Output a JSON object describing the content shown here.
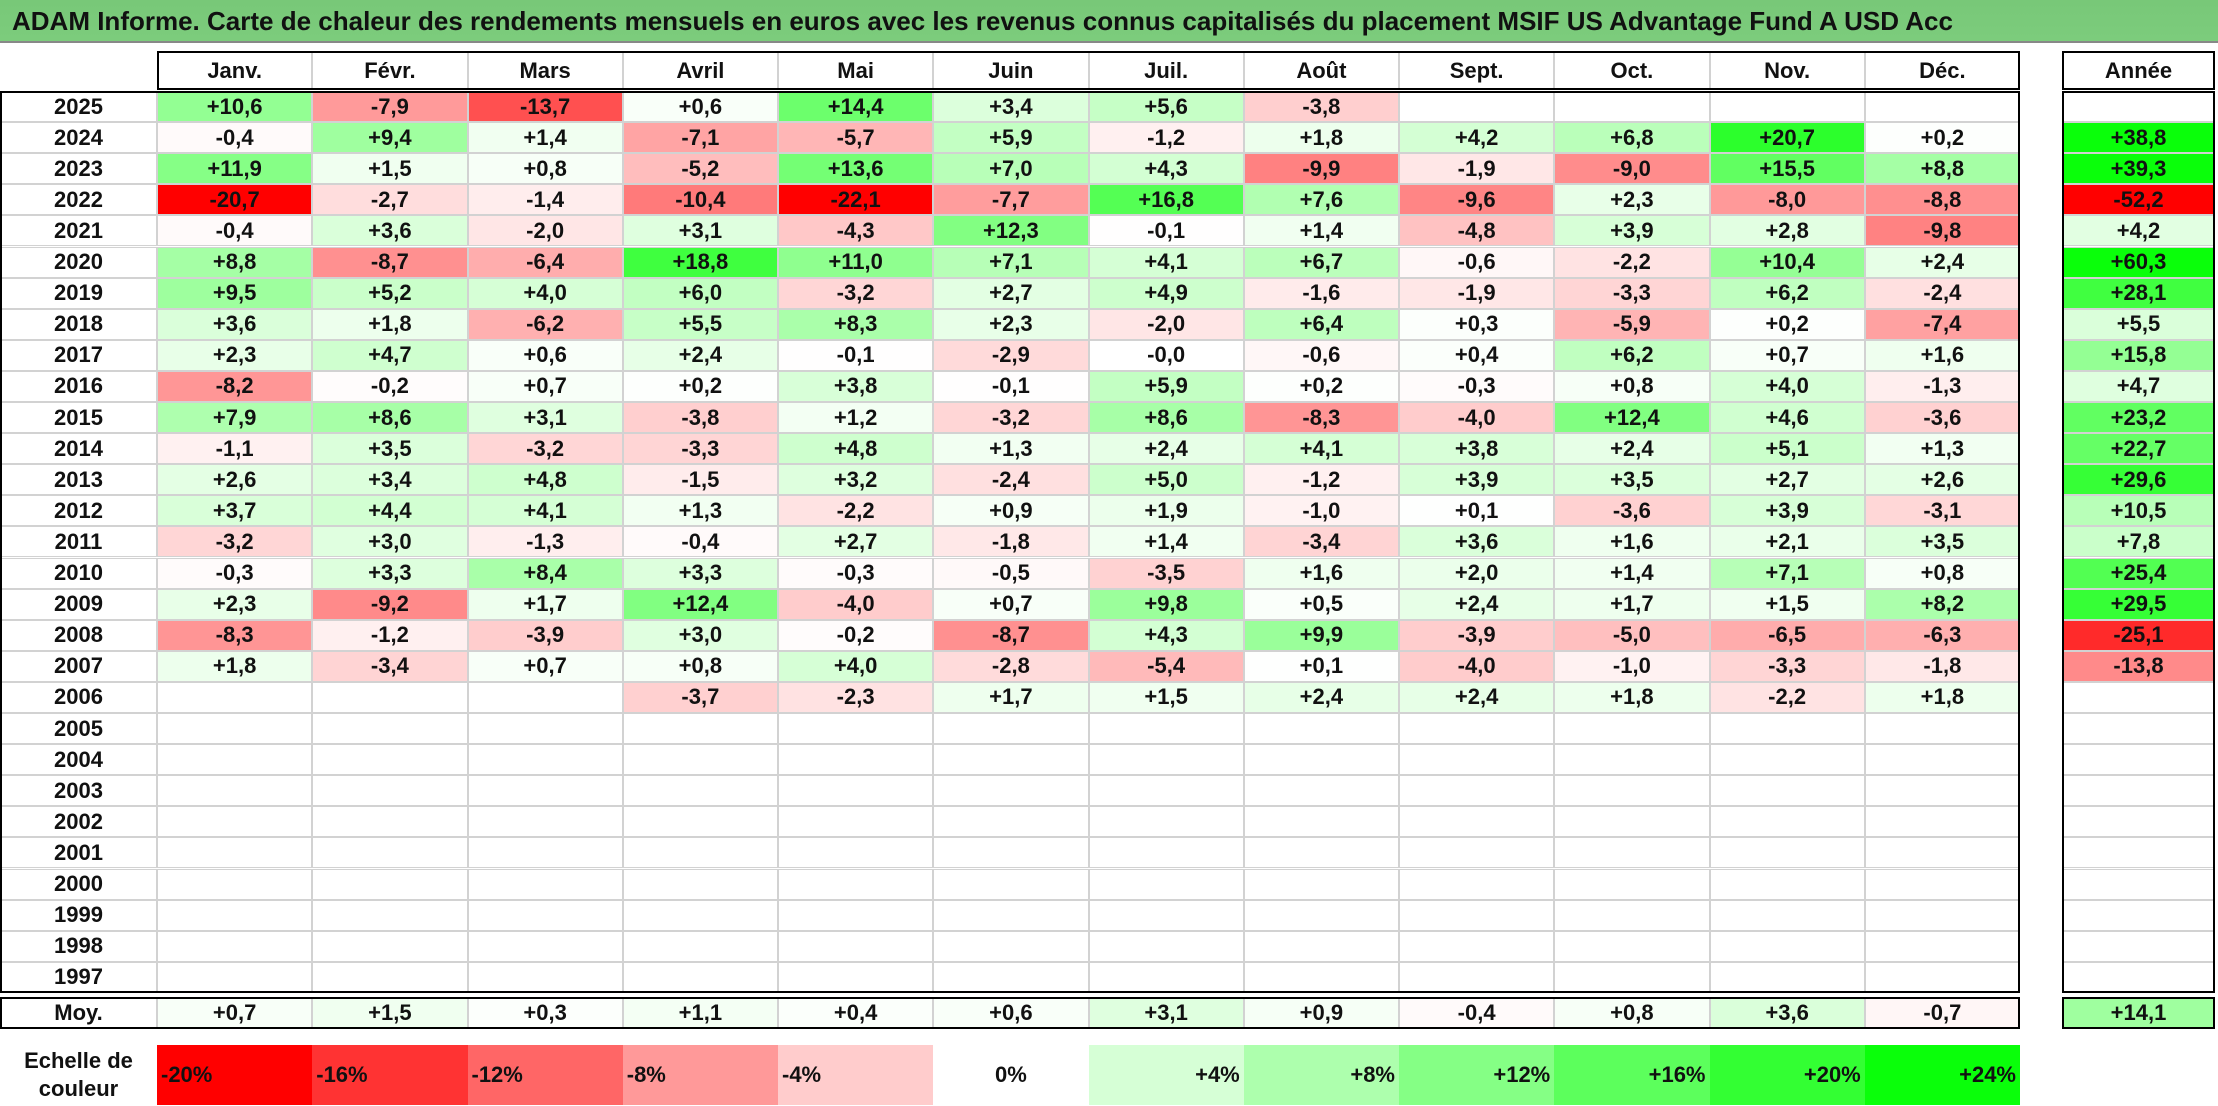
{
  "title": "ADAM Informe. Carte de chaleur des rendements mensuels en euros avec les revenus connus capitalisés du placement MSIF US Advantage Fund A USD Acc",
  "chart_data": {
    "type": "heatmap",
    "title": "ADAM Informe. Carte de chaleur des rendements mensuels en euros avec les revenus connus capitalisés du placement MSIF US Advantage Fund A USD Acc",
    "columns": [
      "Janv.",
      "Févr.",
      "Mars",
      "Avril",
      "Mai",
      "Juin",
      "Juil.",
      "Août",
      "Sept.",
      "Oct.",
      "Nov.",
      "Déc."
    ],
    "annual_header": "Année",
    "rows": [
      {
        "year": "2025",
        "values": [
          "+10,6",
          "-7,9",
          "-13,7",
          "+0,6",
          "+14,4",
          "+3,4",
          "+5,6",
          "-3,8",
          "",
          "",
          "",
          ""
        ],
        "annual": ""
      },
      {
        "year": "2024",
        "values": [
          "-0,4",
          "+9,4",
          "+1,4",
          "-7,1",
          "-5,7",
          "+5,9",
          "-1,2",
          "+1,8",
          "+4,2",
          "+6,8",
          "+20,7",
          "+0,2"
        ],
        "annual": "+38,8"
      },
      {
        "year": "2023",
        "values": [
          "+11,9",
          "+1,5",
          "+0,8",
          "-5,2",
          "+13,6",
          "+7,0",
          "+4,3",
          "-9,9",
          "-1,9",
          "-9,0",
          "+15,5",
          "+8,8"
        ],
        "annual": "+39,3"
      },
      {
        "year": "2022",
        "values": [
          "-20,7",
          "-2,7",
          "-1,4",
          "-10,4",
          "-22,1",
          "-7,7",
          "+16,8",
          "+7,6",
          "-9,6",
          "+2,3",
          "-8,0",
          "-8,8"
        ],
        "annual": "-52,2"
      },
      {
        "year": "2021",
        "values": [
          "-0,4",
          "+3,6",
          "-2,0",
          "+3,1",
          "-4,3",
          "+12,3",
          "-0,1",
          "+1,4",
          "-4,8",
          "+3,9",
          "+2,8",
          "-9,8"
        ],
        "annual": "+4,2"
      },
      {
        "year": "2020",
        "values": [
          "+8,8",
          "-8,7",
          "-6,4",
          "+18,8",
          "+11,0",
          "+7,1",
          "+4,1",
          "+6,7",
          "-0,6",
          "-2,2",
          "+10,4",
          "+2,4"
        ],
        "annual": "+60,3"
      },
      {
        "year": "2019",
        "values": [
          "+9,5",
          "+5,2",
          "+4,0",
          "+6,0",
          "-3,2",
          "+2,7",
          "+4,9",
          "-1,6",
          "-1,9",
          "-3,3",
          "+6,2",
          "-2,4"
        ],
        "annual": "+28,1"
      },
      {
        "year": "2018",
        "values": [
          "+3,6",
          "+1,8",
          "-6,2",
          "+5,5",
          "+8,3",
          "+2,3",
          "-2,0",
          "+6,4",
          "+0,3",
          "-5,9",
          "+0,2",
          "-7,4"
        ],
        "annual": "+5,5"
      },
      {
        "year": "2017",
        "values": [
          "+2,3",
          "+4,7",
          "+0,6",
          "+2,4",
          "-0,1",
          "-2,9",
          "-0,0",
          "-0,6",
          "+0,4",
          "+6,2",
          "+0,7",
          "+1,6"
        ],
        "annual": "+15,8"
      },
      {
        "year": "2016",
        "values": [
          "-8,2",
          "-0,2",
          "+0,7",
          "+0,2",
          "+3,8",
          "-0,1",
          "+5,9",
          "+0,2",
          "-0,3",
          "+0,8",
          "+4,0",
          "-1,3"
        ],
        "annual": "+4,7"
      },
      {
        "year": "2015",
        "values": [
          "+7,9",
          "+8,6",
          "+3,1",
          "-3,8",
          "+1,2",
          "-3,2",
          "+8,6",
          "-8,3",
          "-4,0",
          "+12,4",
          "+4,6",
          "-3,6"
        ],
        "annual": "+23,2"
      },
      {
        "year": "2014",
        "values": [
          "-1,1",
          "+3,5",
          "-3,2",
          "-3,3",
          "+4,8",
          "+1,3",
          "+2,4",
          "+4,1",
          "+3,8",
          "+2,4",
          "+5,1",
          "+1,3"
        ],
        "annual": "+22,7"
      },
      {
        "year": "2013",
        "values": [
          "+2,6",
          "+3,4",
          "+4,8",
          "-1,5",
          "+3,2",
          "-2,4",
          "+5,0",
          "-1,2",
          "+3,9",
          "+3,5",
          "+2,7",
          "+2,6"
        ],
        "annual": "+29,6"
      },
      {
        "year": "2012",
        "values": [
          "+3,7",
          "+4,4",
          "+4,1",
          "+1,3",
          "-2,2",
          "+0,9",
          "+1,9",
          "-1,0",
          "+0,1",
          "-3,6",
          "+3,9",
          "-3,1"
        ],
        "annual": "+10,5"
      },
      {
        "year": "2011",
        "values": [
          "-3,2",
          "+3,0",
          "-1,3",
          "-0,4",
          "+2,7",
          "-1,8",
          "+1,4",
          "-3,4",
          "+3,6",
          "+1,6",
          "+2,1",
          "+3,5"
        ],
        "annual": "+7,8"
      },
      {
        "year": "2010",
        "values": [
          "-0,3",
          "+3,3",
          "+8,4",
          "+3,3",
          "-0,3",
          "-0,5",
          "-3,5",
          "+1,6",
          "+2,0",
          "+1,4",
          "+7,1",
          "+0,8"
        ],
        "annual": "+25,4"
      },
      {
        "year": "2009",
        "values": [
          "+2,3",
          "-9,2",
          "+1,7",
          "+12,4",
          "-4,0",
          "+0,7",
          "+9,8",
          "+0,5",
          "+2,4",
          "+1,7",
          "+1,5",
          "+8,2"
        ],
        "annual": "+29,5"
      },
      {
        "year": "2008",
        "values": [
          "-8,3",
          "-1,2",
          "-3,9",
          "+3,0",
          "-0,2",
          "-8,7",
          "+4,3",
          "+9,9",
          "-3,9",
          "-5,0",
          "-6,5",
          "-6,3"
        ],
        "annual": "-25,1"
      },
      {
        "year": "2007",
        "values": [
          "+1,8",
          "-3,4",
          "+0,7",
          "+0,8",
          "+4,0",
          "-2,8",
          "-5,4",
          "+0,1",
          "-4,0",
          "-1,0",
          "-3,3",
          "-1,8"
        ],
        "annual": "-13,8"
      },
      {
        "year": "2006",
        "values": [
          "",
          "",
          "",
          "-3,7",
          "-2,3",
          "+1,7",
          "+1,5",
          "+2,4",
          "+2,4",
          "+1,8",
          "-2,2",
          "+1,8"
        ],
        "annual": ""
      },
      {
        "year": "2005",
        "values": [
          "",
          "",
          "",
          "",
          "",
          "",
          "",
          "",
          "",
          "",
          "",
          ""
        ],
        "annual": ""
      },
      {
        "year": "2004",
        "values": [
          "",
          "",
          "",
          "",
          "",
          "",
          "",
          "",
          "",
          "",
          "",
          ""
        ],
        "annual": ""
      },
      {
        "year": "2003",
        "values": [
          "",
          "",
          "",
          "",
          "",
          "",
          "",
          "",
          "",
          "",
          "",
          ""
        ],
        "annual": ""
      },
      {
        "year": "2002",
        "values": [
          "",
          "",
          "",
          "",
          "",
          "",
          "",
          "",
          "",
          "",
          "",
          ""
        ],
        "annual": ""
      },
      {
        "year": "2001",
        "values": [
          "",
          "",
          "",
          "",
          "",
          "",
          "",
          "",
          "",
          "",
          "",
          ""
        ],
        "annual": ""
      },
      {
        "year": "2000",
        "values": [
          "",
          "",
          "",
          "",
          "",
          "",
          "",
          "",
          "",
          "",
          "",
          ""
        ],
        "annual": ""
      },
      {
        "year": "1999",
        "values": [
          "",
          "",
          "",
          "",
          "",
          "",
          "",
          "",
          "",
          "",
          "",
          ""
        ],
        "annual": ""
      },
      {
        "year": "1998",
        "values": [
          "",
          "",
          "",
          "",
          "",
          "",
          "",
          "",
          "",
          "",
          "",
          ""
        ],
        "annual": ""
      },
      {
        "year": "1997",
        "values": [
          "",
          "",
          "",
          "",
          "",
          "",
          "",
          "",
          "",
          "",
          "",
          ""
        ],
        "annual": ""
      }
    ],
    "average": {
      "label": "Moy.",
      "values": [
        "+0,7",
        "+1,5",
        "+0,3",
        "+1,1",
        "+0,4",
        "+0,6",
        "+3,1",
        "+0,9",
        "-0,4",
        "+0,8",
        "+3,6",
        "-0,7"
      ],
      "annual": "+14,1"
    },
    "scale": {
      "label_line1": "Echelle de",
      "label_line2": "couleur",
      "steps": [
        {
          "label": "-20%",
          "value": -20,
          "color": "#ff0000"
        },
        {
          "label": "-16%",
          "value": -16,
          "color": "#ff3333"
        },
        {
          "label": "-12%",
          "value": -12,
          "color": "#ff6666"
        },
        {
          "label": "-8%",
          "value": -8,
          "color": "#ff9999"
        },
        {
          "label": "-4%",
          "value": -4,
          "color": "#ffcccc"
        },
        {
          "label": "0%",
          "value": 0,
          "color": "#ffffff"
        },
        {
          "label": "+4%",
          "value": 4,
          "color": "#d6ffd6"
        },
        {
          "label": "+8%",
          "value": 8,
          "color": "#adffad"
        },
        {
          "label": "+12%",
          "value": 12,
          "color": "#85ff85"
        },
        {
          "label": "+16%",
          "value": 16,
          "color": "#5cff5c"
        },
        {
          "label": "+20%",
          "value": 20,
          "color": "#33ff33"
        },
        {
          "label": "+24%",
          "value": 24,
          "color": "#0aff0a"
        }
      ]
    }
  }
}
